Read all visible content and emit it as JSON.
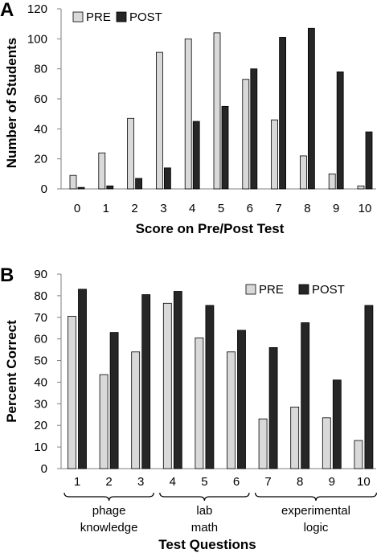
{
  "chart_data": [
    {
      "panel": "A",
      "type": "bar",
      "title": "",
      "xlabel": "Score on Pre/Post Test",
      "ylabel": "Number of Students",
      "categories": [
        "0",
        "1",
        "2",
        "3",
        "4",
        "5",
        "6",
        "7",
        "8",
        "9",
        "10"
      ],
      "series": [
        {
          "name": "PRE",
          "values": [
            9,
            24,
            47,
            91,
            100,
            104,
            73,
            46,
            22,
            10,
            2
          ]
        },
        {
          "name": "POST",
          "values": [
            1,
            2,
            7,
            14,
            45,
            55,
            80,
            101,
            107,
            78,
            38
          ]
        }
      ],
      "ylim": [
        0,
        120
      ],
      "yticks": [
        0,
        20,
        40,
        60,
        80,
        100,
        120
      ],
      "legend": "top-left",
      "grid": false
    },
    {
      "panel": "B",
      "type": "bar",
      "title": "",
      "xlabel": "Test Questions",
      "ylabel": "Percent Correct",
      "categories": [
        "1",
        "2",
        "3",
        "4",
        "5",
        "6",
        "7",
        "8",
        "9",
        "10"
      ],
      "series": [
        {
          "name": "PRE",
          "values": [
            70.5,
            43.5,
            54,
            76.5,
            60.5,
            54,
            23,
            28.5,
            23.5,
            13
          ]
        },
        {
          "name": "POST",
          "values": [
            83,
            63,
            80.5,
            82,
            75.5,
            64,
            56,
            67.5,
            41,
            75.5
          ]
        }
      ],
      "ylim": [
        0,
        90
      ],
      "yticks": [
        0,
        10,
        20,
        30,
        40,
        50,
        60,
        70,
        80,
        90
      ],
      "legend": "top-right",
      "grid": false,
      "groups": [
        {
          "lines": [
            "phage",
            "knowledge"
          ],
          "questions": [
            "1",
            "2",
            "3"
          ]
        },
        {
          "lines": [
            "lab",
            "math"
          ],
          "questions": [
            "4",
            "5",
            "6"
          ]
        },
        {
          "lines": [
            "experimental",
            "logic"
          ],
          "questions": [
            "7",
            "8",
            "9",
            "10"
          ]
        }
      ]
    }
  ],
  "colors": {
    "pre": "#d9d9d9",
    "post": "#262626",
    "axis": "#7f7f7f",
    "bar_stroke": "#000000"
  }
}
